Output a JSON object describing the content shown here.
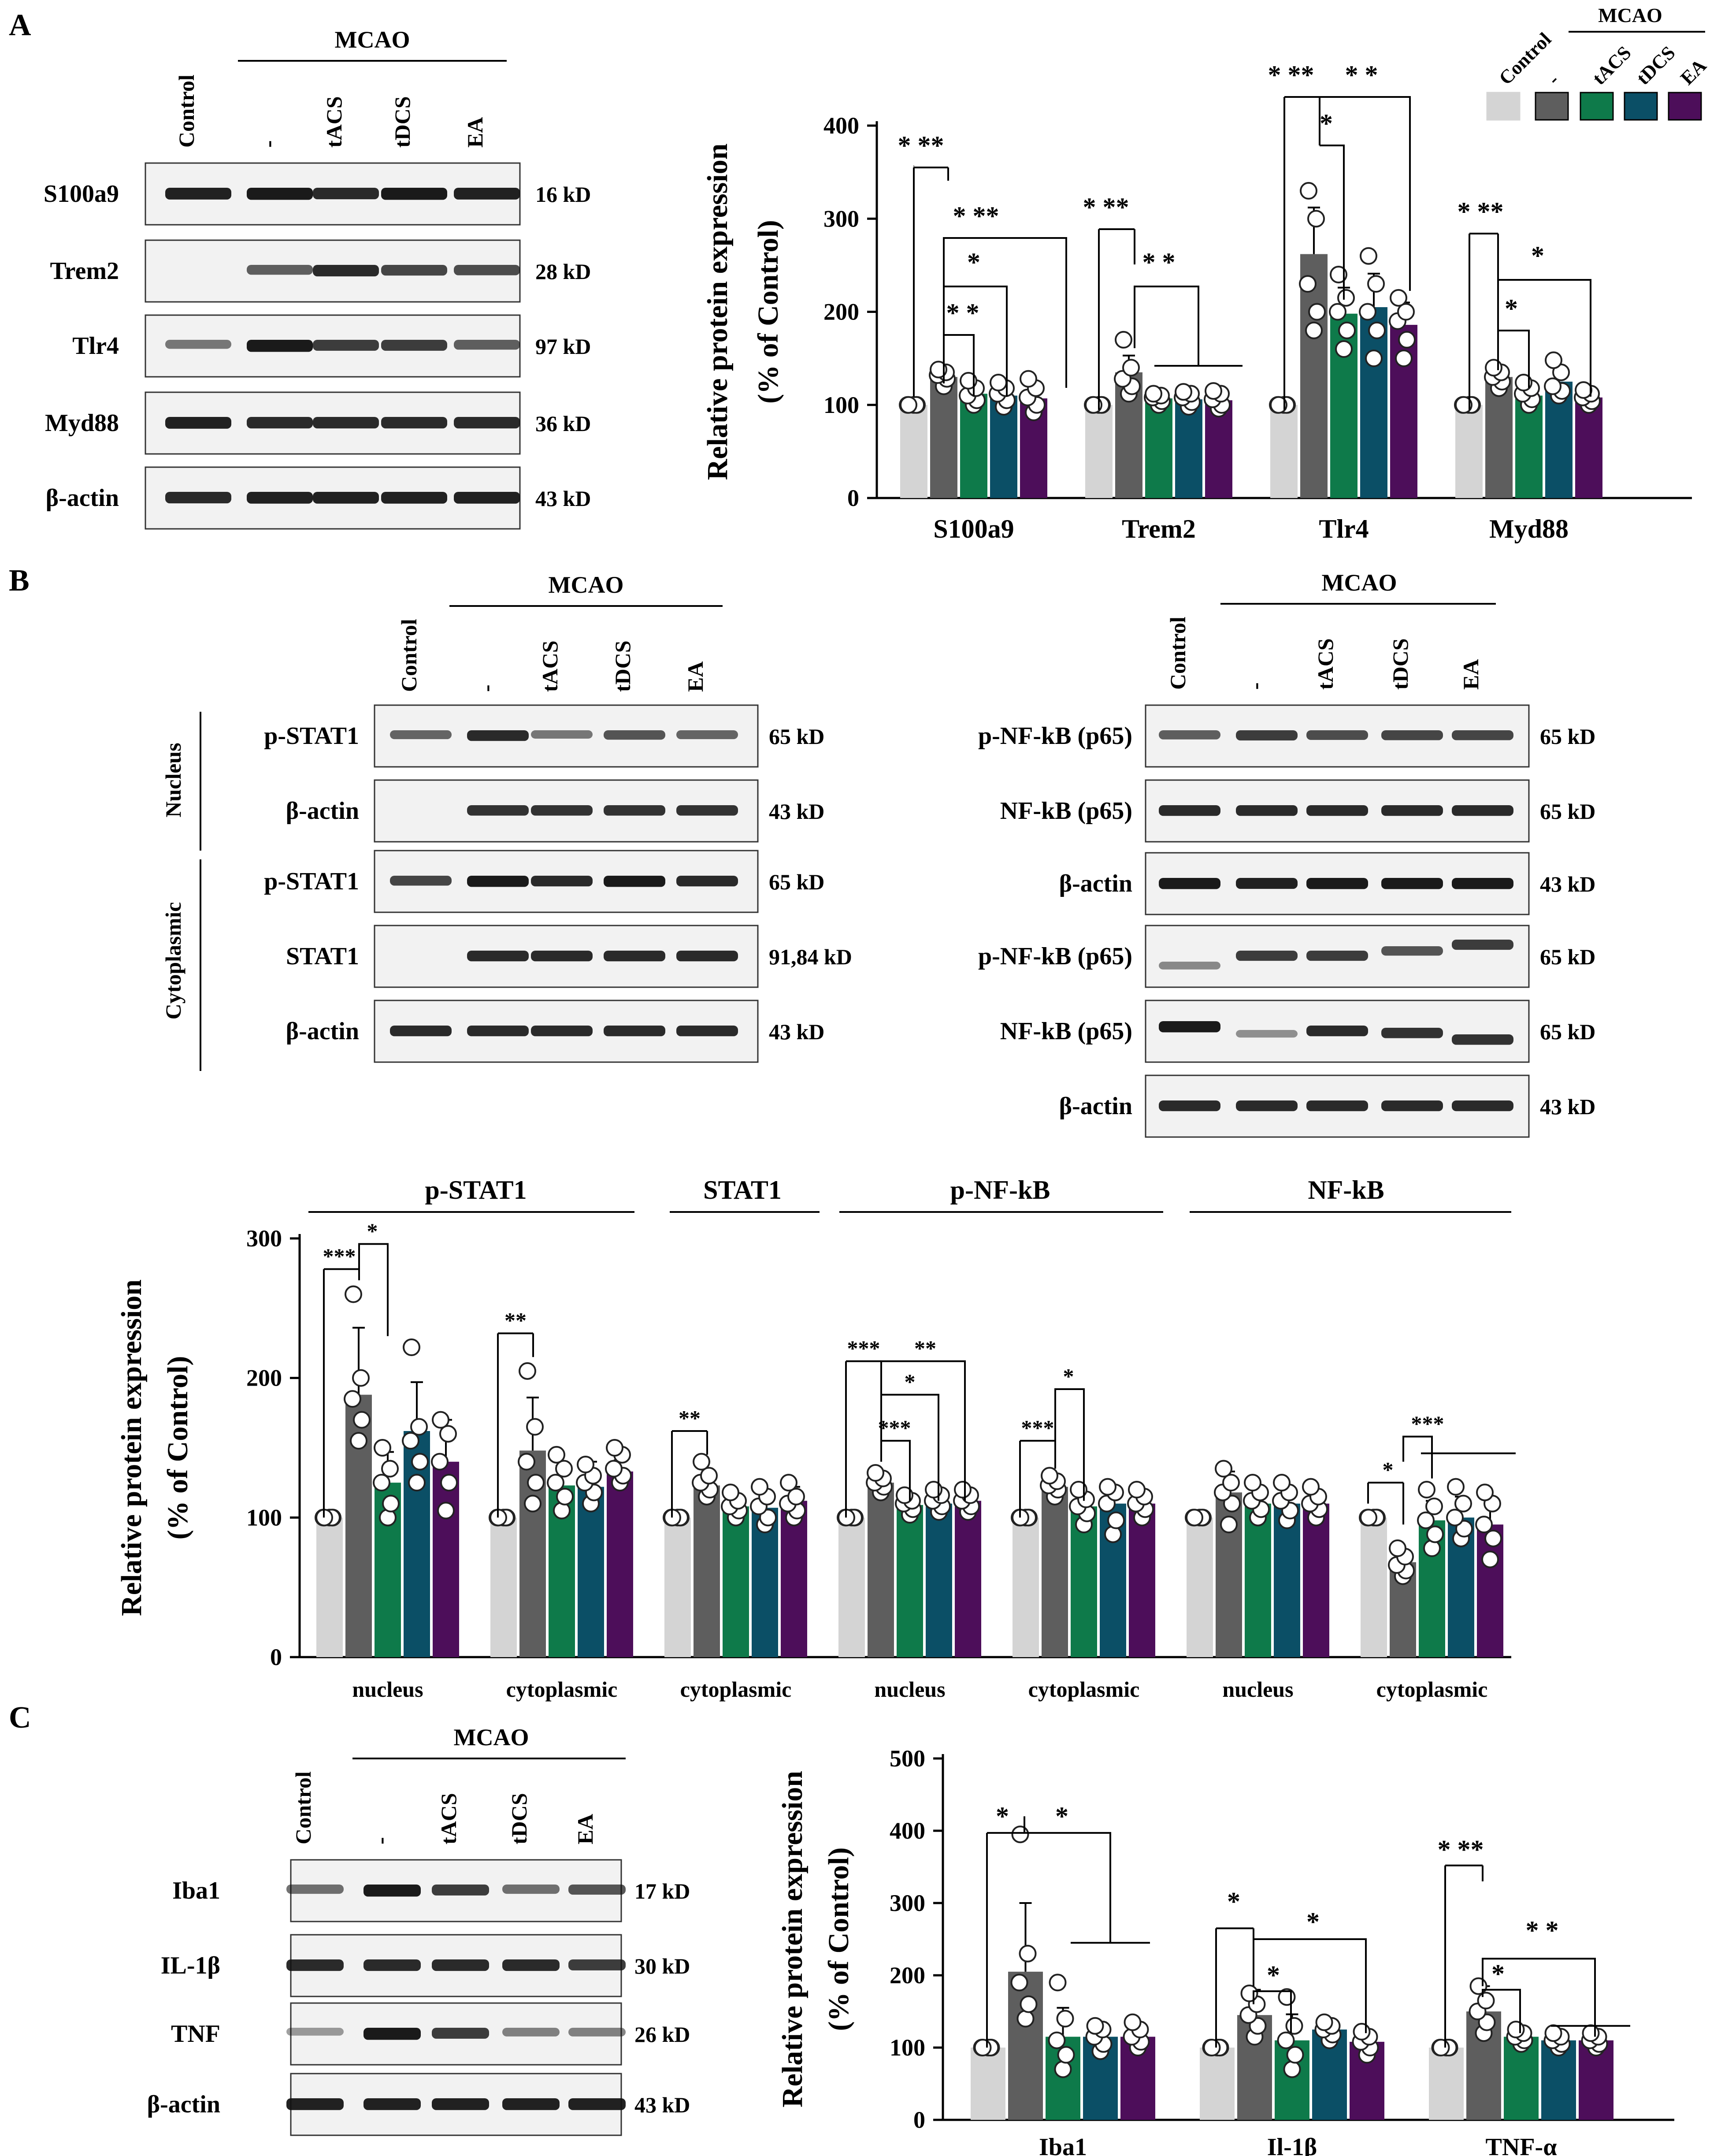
{
  "panels": {
    "A": {
      "label": "A",
      "blot": {
        "group_label": "MCAO",
        "lanes": [
          "Control",
          "-",
          "tACS",
          "tDCS",
          "EA"
        ],
        "rows": [
          {
            "name": "S100a9",
            "kd": "16 kD"
          },
          {
            "name": "Trem2",
            "kd": "28 kD"
          },
          {
            "name": "Tlr4",
            "kd": "97 kD"
          },
          {
            "name": "Myd88",
            "kd": "36 kD"
          },
          {
            "name": "β-actin",
            "kd": "43 kD"
          }
        ]
      },
      "legend": {
        "group_label": "MCAO",
        "entries": [
          "Control",
          "-",
          "tACS",
          "tDCS",
          "EA"
        ],
        "colors": [
          "#d4d4d4",
          "#5e5e5e",
          "#0e7a4a",
          "#0b4f66",
          "#4d0e5a"
        ]
      },
      "sig": [
        {
          "group": "S100a9",
          "marks": [
            "* **",
            "* **",
            "*",
            "* *"
          ]
        },
        {
          "group": "Trem2",
          "marks": [
            "* **",
            "* *"
          ]
        },
        {
          "group": "Tlr4",
          "marks": [
            "* **",
            "* *",
            "*"
          ]
        },
        {
          "group": "Myd88",
          "marks": [
            "* **",
            "*",
            "*"
          ]
        }
      ]
    },
    "B": {
      "label": "B",
      "left_blot": {
        "group_label": "MCAO",
        "lanes": [
          "Control",
          "-",
          "tACS",
          "tDCS",
          "EA"
        ],
        "sections": [
          "Nucleus",
          "Cytoplasmic"
        ],
        "rows": [
          {
            "name": "p-STAT1",
            "kd": "65 kD"
          },
          {
            "name": "β-actin",
            "kd": "43 kD"
          },
          {
            "name": "p-STAT1",
            "kd": "65 kD"
          },
          {
            "name": "STAT1",
            "kd": "91,84 kD"
          },
          {
            "name": "β-actin",
            "kd": "43 kD"
          }
        ]
      },
      "right_blot": {
        "group_label": "MCAO",
        "lanes": [
          "Control",
          "-",
          "tACS",
          "tDCS",
          "EA"
        ],
        "rows": [
          {
            "name": "p-NF-kB (p65)",
            "kd": "65 kD"
          },
          {
            "name": "NF-kB (p65)",
            "kd": "65 kD"
          },
          {
            "name": "β-actin",
            "kd": "43 kD"
          },
          {
            "name": "p-NF-kB (p65)",
            "kd": "65 kD"
          },
          {
            "name": "NF-kB (p65)",
            "kd": "65 kD"
          },
          {
            "name": "β-actin",
            "kd": "43 kD"
          }
        ]
      },
      "header_groups": [
        "p-STAT1",
        "STAT1",
        "p-NF-kB",
        "NF-kB"
      ],
      "sig": [
        {
          "group": 0,
          "marks": [
            "***",
            "*"
          ]
        },
        {
          "group": 1,
          "marks": [
            "**"
          ]
        },
        {
          "group": 2,
          "marks": [
            "**"
          ]
        },
        {
          "group": 3,
          "marks": [
            "***",
            "**",
            "*",
            "***"
          ]
        },
        {
          "group": 4,
          "marks": [
            "***",
            "*"
          ]
        },
        {
          "group": 6,
          "marks": [
            "*",
            "***"
          ]
        }
      ]
    },
    "C": {
      "label": "C",
      "blot": {
        "group_label": "MCAO",
        "lanes": [
          "Control",
          "-",
          "tACS",
          "tDCS",
          "EA"
        ],
        "rows": [
          {
            "name": "Iba1",
            "kd": "17 kD"
          },
          {
            "name": "IL-1β",
            "kd": "30 kD"
          },
          {
            "name": "TNF",
            "kd": "26 kD"
          },
          {
            "name": "β-actin",
            "kd": "43 kD"
          }
        ]
      },
      "sig": [
        {
          "group": "Iba1",
          "marks": [
            "*",
            "*"
          ]
        },
        {
          "group": "Il-1β",
          "marks": [
            "*",
            "*",
            "*"
          ]
        },
        {
          "group": "TNF-α",
          "marks": [
            "* **",
            "* *",
            "*"
          ]
        }
      ]
    }
  },
  "chart_data": [
    {
      "type": "bar",
      "id": "A",
      "ylabel": "Relative protein expression",
      "ylabel2": "(% of Control)",
      "ylim": [
        0,
        400
      ],
      "yticks": [
        0,
        100,
        200,
        300,
        400
      ],
      "categories": [
        "S100a9",
        "Trem2",
        "Tlr4",
        "Myd88"
      ],
      "series": [
        {
          "name": "Control",
          "values": [
            100,
            100,
            100,
            100
          ],
          "errors": [
            0,
            0,
            0,
            0
          ]
        },
        {
          "name": "-",
          "values": [
            130,
            135,
            262,
            130
          ],
          "errors": [
            8,
            18,
            50,
            10
          ]
        },
        {
          "name": "tACS",
          "values": [
            112,
            107,
            198,
            110
          ],
          "errors": [
            10,
            5,
            28,
            8
          ]
        },
        {
          "name": "tDCS",
          "values": [
            110,
            106,
            205,
            125
          ],
          "errors": [
            9,
            5,
            36,
            13
          ]
        },
        {
          "name": "EA",
          "values": [
            107,
            105,
            186,
            108
          ],
          "errors": [
            12,
            6,
            24,
            6
          ]
        }
      ],
      "points": [
        [
          [
            100,
            100,
            100,
            100,
            100
          ],
          [
            120,
            128,
            132,
            135,
            138
          ],
          [
            100,
            105,
            110,
            118,
            126
          ],
          [
            98,
            105,
            112,
            118,
            124
          ],
          [
            92,
            100,
            108,
            118,
            128
          ]
        ],
        [
          [
            100,
            100,
            100,
            100,
            100
          ],
          [
            112,
            120,
            128,
            140,
            170
          ],
          [
            100,
            104,
            108,
            110,
            112
          ],
          [
            98,
            103,
            108,
            112,
            114
          ],
          [
            96,
            100,
            106,
            112,
            115
          ]
        ],
        [
          [
            100,
            100,
            100,
            100,
            100
          ],
          [
            180,
            200,
            230,
            300,
            330
          ],
          [
            160,
            180,
            200,
            215,
            240
          ],
          [
            150,
            180,
            200,
            230,
            260
          ],
          [
            150,
            170,
            190,
            200,
            215
          ]
        ],
        [
          [
            100,
            100,
            100,
            100,
            100
          ],
          [
            118,
            125,
            130,
            135,
            140
          ],
          [
            100,
            106,
            112,
            118,
            124
          ],
          [
            110,
            115,
            120,
            135,
            148
          ],
          [
            100,
            104,
            108,
            112,
            116
          ]
        ]
      ]
    },
    {
      "type": "bar",
      "id": "B",
      "ylabel": "Relative protein expression",
      "ylabel2": "(% of Control)",
      "ylim": [
        0,
        300
      ],
      "yticks": [
        0,
        100,
        200,
        300
      ],
      "categories": [
        "nucleus",
        "cytoplasmic",
        "cytoplasmic",
        "nucleus",
        "cytoplasmic",
        "nucleus",
        "cytoplasmic"
      ],
      "series": [
        {
          "name": "Control",
          "values": [
            100,
            100,
            100,
            100,
            100,
            100,
            100
          ],
          "errors": [
            0,
            0,
            0,
            0,
            0,
            0,
            0
          ]
        },
        {
          "name": "-",
          "values": [
            188,
            148,
            123,
            125,
            122,
            118,
            68
          ],
          "errors": [
            48,
            38,
            8,
            6,
            6,
            15,
            8
          ]
        },
        {
          "name": "tACS",
          "values": [
            125,
            123,
            108,
            109,
            108,
            110,
            98
          ],
          "errors": [
            22,
            14,
            5,
            5,
            7,
            8,
            14
          ]
        },
        {
          "name": "tDCS",
          "values": [
            162,
            122,
            107,
            110,
            110,
            110,
            100
          ],
          "errors": [
            35,
            18,
            9,
            7,
            9,
            8,
            15
          ]
        },
        {
          "name": "EA",
          "values": [
            140,
            133,
            112,
            112,
            110,
            110,
            95
          ],
          "errors": [
            30,
            8,
            10,
            6,
            7,
            6,
            15
          ]
        }
      ],
      "points": [
        [
          [
            100,
            100,
            100,
            100,
            100
          ],
          [
            155,
            170,
            185,
            200,
            260
          ],
          [
            100,
            110,
            125,
            135,
            150
          ],
          [
            125,
            140,
            155,
            165,
            222
          ],
          [
            105,
            125,
            140,
            160,
            170
          ]
        ],
        [
          [
            100,
            100,
            100,
            100,
            100
          ],
          [
            110,
            125,
            140,
            165,
            205
          ],
          [
            105,
            115,
            125,
            135,
            145
          ],
          [
            110,
            118,
            125,
            130,
            138
          ],
          [
            125,
            130,
            135,
            145,
            150
          ]
        ],
        [
          [
            100,
            100,
            100,
            100,
            100
          ],
          [
            115,
            120,
            125,
            130,
            140
          ],
          [
            100,
            105,
            108,
            112,
            118
          ],
          [
            95,
            100,
            108,
            115,
            122
          ],
          [
            100,
            105,
            110,
            115,
            125
          ]
        ],
        [
          [
            100,
            100,
            100,
            100,
            100
          ],
          [
            118,
            122,
            125,
            128,
            132
          ],
          [
            102,
            106,
            110,
            112,
            116
          ],
          [
            104,
            108,
            112,
            116,
            120
          ],
          [
            104,
            108,
            112,
            116,
            120
          ]
        ],
        [
          [
            100,
            100,
            100,
            100,
            100
          ],
          [
            115,
            120,
            123,
            126,
            130
          ],
          [
            95,
            103,
            108,
            113,
            120
          ],
          [
            88,
            98,
            110,
            118,
            122
          ],
          [
            100,
            106,
            110,
            115,
            120
          ]
        ],
        [
          [
            100,
            100,
            100,
            100,
            100
          ],
          [
            95,
            110,
            118,
            125,
            135
          ],
          [
            100,
            106,
            112,
            118,
            125
          ],
          [
            98,
            105,
            112,
            118,
            125
          ],
          [
            100,
            106,
            110,
            115,
            122
          ]
        ],
        [
          [
            100,
            100,
            100,
            100,
            100
          ],
          [
            58,
            62,
            66,
            72,
            78
          ],
          [
            78,
            88,
            98,
            108,
            120
          ],
          [
            85,
            92,
            100,
            110,
            122
          ],
          [
            70,
            85,
            95,
            110,
            118
          ]
        ]
      ]
    },
    {
      "type": "bar",
      "id": "C",
      "ylabel": "Relative protein expression",
      "ylabel2": "(% of Control)",
      "ylim": [
        0,
        500
      ],
      "yticks": [
        0,
        100,
        200,
        300,
        400,
        500
      ],
      "categories": [
        "Iba1",
        "Il-1β",
        "TNF-α"
      ],
      "series": [
        {
          "name": "Control",
          "values": [
            100,
            100,
            100
          ],
          "errors": [
            0,
            0,
            0
          ]
        },
        {
          "name": "-",
          "values": [
            205,
            145,
            150
          ],
          "errors": [
            95,
            35,
            35
          ]
        },
        {
          "name": "tACS",
          "values": [
            115,
            110,
            115
          ],
          "errors": [
            40,
            36,
            10
          ]
        },
        {
          "name": "tDCS",
          "values": [
            115,
            125,
            110
          ],
          "errors": [
            20,
            12,
            8
          ]
        },
        {
          "name": "EA",
          "values": [
            115,
            108,
            110
          ],
          "errors": [
            20,
            15,
            10
          ]
        }
      ],
      "points": [
        [
          [
            100,
            100,
            100,
            100,
            100
          ],
          [
            140,
            160,
            190,
            230,
            395
          ],
          [
            70,
            90,
            110,
            140,
            190
          ],
          [
            95,
            105,
            115,
            125,
            130
          ],
          [
            100,
            108,
            115,
            125,
            135
          ]
        ],
        [
          [
            100,
            100,
            100,
            100,
            100
          ],
          [
            115,
            130,
            145,
            160,
            175
          ],
          [
            70,
            90,
            110,
            130,
            170
          ],
          [
            110,
            118,
            125,
            130,
            135
          ],
          [
            90,
            100,
            108,
            115,
            122
          ]
        ],
        [
          [
            100,
            100,
            100,
            100,
            100
          ],
          [
            120,
            135,
            150,
            165,
            185
          ],
          [
            105,
            110,
            115,
            120,
            125
          ],
          [
            100,
            105,
            110,
            115,
            120
          ],
          [
            100,
            105,
            110,
            115,
            120
          ]
        ]
      ]
    }
  ]
}
